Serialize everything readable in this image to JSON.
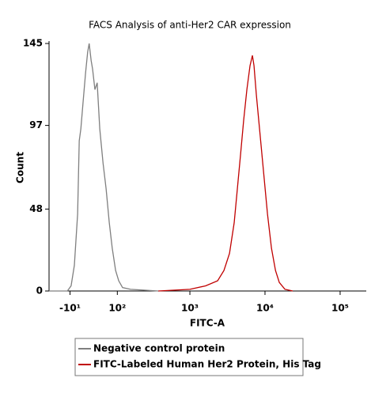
{
  "chart_data": {
    "type": "histogram-line",
    "title": "FACS Analysis of anti-Her2 CAR expression",
    "xlabel": "FITC-A",
    "ylabel": "Count",
    "xscale": "biexponential",
    "legend": "bottom",
    "xlim": [
      -54,
      222800
    ],
    "ylim": [
      0,
      145
    ],
    "xticks": [
      {
        "value": -10,
        "label": "-10¹"
      },
      {
        "value": 100,
        "label": "10²"
      },
      {
        "value": 1000,
        "label": "10³"
      },
      {
        "value": 10000,
        "label": "10⁴"
      },
      {
        "value": 100000,
        "label": "10⁵"
      }
    ],
    "yticks": [
      0,
      48,
      97,
      145
    ],
    "series": [
      {
        "name": "Negative control protein",
        "color": "#7f7f7f",
        "x": [
          -54,
          -15,
          -8,
          -2,
          4,
          7,
          10,
          14,
          19,
          23,
          26,
          30,
          33,
          38,
          43,
          49,
          57,
          65,
          74,
          83,
          94,
          105,
          120,
          157,
          378
        ],
        "values": [
          0,
          0,
          3,
          15,
          45,
          88,
          95,
          110,
          128,
          140,
          145,
          135,
          130,
          118,
          122,
          95,
          75,
          60,
          40,
          25,
          12,
          6,
          2,
          1,
          0
        ]
      },
      {
        "name": "FITC-Labeled Human Her2 Protein, His Tag",
        "color": "#c00000",
        "x": [
          378,
          1000,
          1620,
          2340,
          2840,
          3370,
          3890,
          4290,
          4730,
          5200,
          5740,
          6320,
          6800,
          7140,
          7670,
          8460,
          9560,
          10800,
          12200,
          13800,
          15500,
          18400,
          23400
        ],
        "values": [
          0,
          1,
          3,
          6,
          12,
          22,
          40,
          60,
          80,
          100,
          118,
          132,
          138,
          132,
          115,
          95,
          70,
          45,
          25,
          12,
          5,
          1,
          0
        ]
      }
    ]
  }
}
